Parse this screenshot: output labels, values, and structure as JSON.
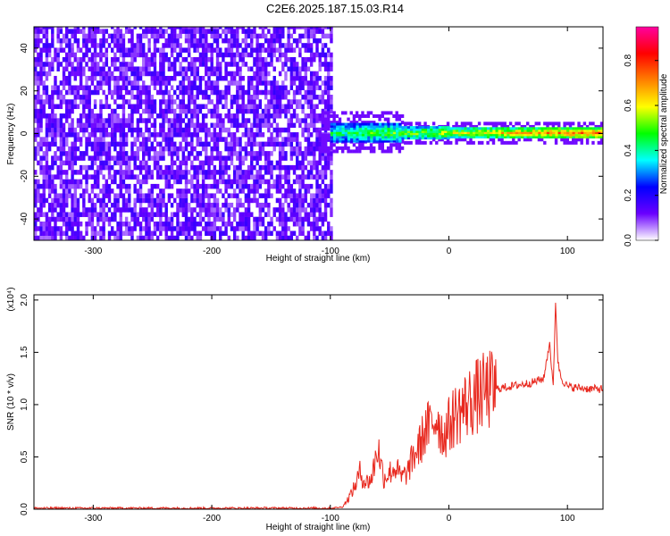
{
  "page_title": "C2E6.2025.187.15.03.R14",
  "chart_data": [
    {
      "type": "heatmap",
      "title": "C2E6.2025.187.15.03.R14",
      "xlabel": "Height of straight line (km)",
      "ylabel": "Frequency (Hz)",
      "xlim": [
        -350,
        130
      ],
      "ylim": [
        -50,
        50
      ],
      "x_ticks": [
        -300,
        -200,
        -100,
        0,
        100
      ],
      "y_ticks": [
        -40,
        -20,
        0,
        20,
        40
      ],
      "colorbar": {
        "label": "Normalized spectral amplitude",
        "range": [
          0,
          0.95
        ],
        "ticks": [
          0.0,
          0.2,
          0.4,
          0.6,
          0.8
        ],
        "colormap": [
          "#ffffff",
          "#6a00ff",
          "#0000ff",
          "#00ffff",
          "#00ff00",
          "#ffff00",
          "#ff8000",
          "#ff0000",
          "#ff00a0"
        ]
      },
      "regions": [
        {
          "x_range": [
            -350,
            -100
          ],
          "y_range": [
            -50,
            50
          ],
          "amplitude": 0.1,
          "description": "broadband noise"
        },
        {
          "x_range": [
            -100,
            130
          ],
          "y_center": 0,
          "amplitude_range": [
            0.3,
            0.9
          ],
          "description": "narrow signal near 0 Hz"
        }
      ]
    },
    {
      "type": "line",
      "xlabel": "Height of straight line (km)",
      "ylabel": "SNR (10 * v/v)",
      "y_scale_label": "(x10⁴)",
      "xlim": [
        -350,
        130
      ],
      "ylim": [
        0,
        2.05
      ],
      "x_ticks": [
        -300,
        -200,
        -100,
        0,
        100
      ],
      "y_ticks": [
        0.0,
        0.5,
        1.0,
        1.5,
        2.0
      ],
      "series": [
        {
          "color": "#e8281e",
          "x": [
            -350,
            -300,
            -250,
            -200,
            -150,
            -100,
            -90,
            -85,
            -80,
            -75,
            -70,
            -65,
            -60,
            -55,
            -50,
            -45,
            -40,
            -35,
            -30,
            -25,
            -20,
            -15,
            -10,
            -5,
            0,
            5,
            10,
            20,
            30,
            40,
            50,
            60,
            70,
            80,
            85,
            88,
            90,
            92,
            95,
            100,
            110,
            120,
            130
          ],
          "y": [
            0.01,
            0.01,
            0.01,
            0.01,
            0.01,
            0.01,
            0.02,
            0.1,
            0.2,
            0.35,
            0.25,
            0.3,
            0.6,
            0.3,
            0.35,
            0.4,
            0.3,
            0.35,
            0.5,
            0.6,
            0.75,
            0.8,
            0.9,
            0.7,
            0.8,
            0.9,
            0.95,
            1.05,
            1.12,
            1.15,
            1.17,
            1.19,
            1.21,
            1.25,
            1.6,
            1.15,
            2.0,
            1.4,
            1.25,
            1.17,
            1.16,
            1.15,
            1.15
          ]
        }
      ]
    }
  ]
}
